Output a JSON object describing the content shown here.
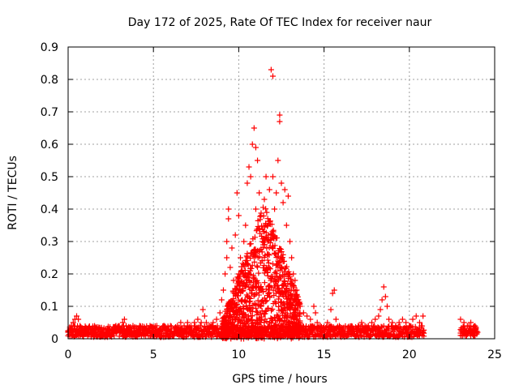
{
  "chart_data": {
    "type": "scatter",
    "title": "Day 172 of 2025, Rate Of TEC Index for receiver naur",
    "xlabel": "GPS time / hours",
    "ylabel": "ROTI / TECUs",
    "xlim": [
      0,
      25
    ],
    "ylim": [
      0,
      0.9
    ],
    "xticks": [
      "0",
      "5",
      "10",
      "15",
      "20",
      "25"
    ],
    "yticks": [
      "0",
      "0.1",
      "0.2",
      "0.3",
      "0.4",
      "0.5",
      "0.6",
      "0.7",
      "0.8",
      "0.9"
    ],
    "grid": true,
    "marker": "+",
    "series": [
      {
        "color": "#ff0000",
        "points": [
          [
            0.0,
            0.02
          ],
          [
            0.1,
            0.03
          ],
          [
            0.2,
            0.04
          ],
          [
            0.3,
            0.05
          ],
          [
            0.4,
            0.06
          ],
          [
            0.5,
            0.07
          ],
          [
            0.6,
            0.06
          ],
          [
            0.7,
            0.04
          ],
          [
            0.8,
            0.03
          ],
          [
            0.9,
            0.02
          ],
          [
            1.0,
            0.03
          ],
          [
            1.2,
            0.02
          ],
          [
            1.4,
            0.03
          ],
          [
            1.6,
            0.02
          ],
          [
            1.8,
            0.03
          ],
          [
            2.0,
            0.02
          ],
          [
            2.2,
            0.03
          ],
          [
            2.4,
            0.02
          ],
          [
            2.6,
            0.03
          ],
          [
            2.8,
            0.04
          ],
          [
            3.0,
            0.03
          ],
          [
            3.2,
            0.05
          ],
          [
            3.3,
            0.06
          ],
          [
            3.4,
            0.04
          ],
          [
            3.6,
            0.03
          ],
          [
            3.8,
            0.04
          ],
          [
            4.0,
            0.03
          ],
          [
            4.2,
            0.04
          ],
          [
            4.4,
            0.03
          ],
          [
            4.6,
            0.03
          ],
          [
            4.8,
            0.04
          ],
          [
            5.0,
            0.03
          ],
          [
            5.2,
            0.04
          ],
          [
            5.4,
            0.03
          ],
          [
            5.6,
            0.04
          ],
          [
            5.8,
            0.03
          ],
          [
            6.0,
            0.04
          ],
          [
            6.2,
            0.03
          ],
          [
            6.4,
            0.04
          ],
          [
            6.6,
            0.05
          ],
          [
            6.8,
            0.04
          ],
          [
            7.0,
            0.05
          ],
          [
            7.2,
            0.04
          ],
          [
            7.4,
            0.05
          ],
          [
            7.6,
            0.06
          ],
          [
            7.8,
            0.05
          ],
          [
            7.9,
            0.09
          ],
          [
            8.0,
            0.07
          ],
          [
            8.1,
            0.05
          ],
          [
            8.3,
            0.04
          ],
          [
            8.5,
            0.05
          ],
          [
            8.7,
            0.06
          ],
          [
            8.9,
            0.08
          ],
          [
            9.0,
            0.12
          ],
          [
            9.1,
            0.15
          ],
          [
            9.2,
            0.2
          ],
          [
            9.3,
            0.25
          ],
          [
            9.3,
            0.3
          ],
          [
            9.4,
            0.37
          ],
          [
            9.4,
            0.4
          ],
          [
            9.5,
            0.22
          ],
          [
            9.6,
            0.28
          ],
          [
            9.7,
            0.18
          ],
          [
            9.8,
            0.32
          ],
          [
            9.9,
            0.45
          ],
          [
            10.0,
            0.38
          ],
          [
            10.0,
            0.2
          ],
          [
            10.1,
            0.25
          ],
          [
            10.2,
            0.12
          ],
          [
            10.3,
            0.3
          ],
          [
            10.4,
            0.35
          ],
          [
            10.5,
            0.48
          ],
          [
            10.6,
            0.53
          ],
          [
            10.7,
            0.5
          ],
          [
            10.8,
            0.6
          ],
          [
            10.9,
            0.65
          ],
          [
            11.0,
            0.59
          ],
          [
            11.0,
            0.4
          ],
          [
            11.1,
            0.55
          ],
          [
            11.2,
            0.45
          ],
          [
            11.3,
            0.38
          ],
          [
            11.4,
            0.3
          ],
          [
            11.5,
            0.43
          ],
          [
            11.6,
            0.5
          ],
          [
            11.7,
            0.35
          ],
          [
            11.8,
            0.46
          ],
          [
            11.9,
            0.83
          ],
          [
            12.0,
            0.81
          ],
          [
            12.0,
            0.5
          ],
          [
            12.1,
            0.4
          ],
          [
            12.2,
            0.45
          ],
          [
            12.3,
            0.55
          ],
          [
            12.4,
            0.67
          ],
          [
            12.4,
            0.69
          ],
          [
            12.5,
            0.48
          ],
          [
            12.6,
            0.42
          ],
          [
            12.7,
            0.46
          ],
          [
            12.8,
            0.35
          ],
          [
            12.9,
            0.44
          ],
          [
            13.0,
            0.3
          ],
          [
            13.1,
            0.25
          ],
          [
            13.2,
            0.2
          ],
          [
            13.3,
            0.18
          ],
          [
            13.4,
            0.15
          ],
          [
            13.5,
            0.12
          ],
          [
            13.6,
            0.1
          ],
          [
            13.8,
            0.08
          ],
          [
            14.0,
            0.07
          ],
          [
            14.2,
            0.06
          ],
          [
            14.4,
            0.1
          ],
          [
            14.5,
            0.08
          ],
          [
            14.6,
            0.05
          ],
          [
            14.8,
            0.04
          ],
          [
            15.0,
            0.03
          ],
          [
            15.2,
            0.05
          ],
          [
            15.4,
            0.09
          ],
          [
            15.5,
            0.14
          ],
          [
            15.6,
            0.15
          ],
          [
            15.7,
            0.06
          ],
          [
            15.9,
            0.04
          ],
          [
            16.1,
            0.03
          ],
          [
            16.4,
            0.03
          ],
          [
            16.7,
            0.03
          ],
          [
            17.0,
            0.04
          ],
          [
            17.2,
            0.05
          ],
          [
            17.4,
            0.04
          ],
          [
            17.6,
            0.04
          ],
          [
            17.8,
            0.05
          ],
          [
            18.0,
            0.06
          ],
          [
            18.2,
            0.07
          ],
          [
            18.3,
            0.09
          ],
          [
            18.4,
            0.12
          ],
          [
            18.5,
            0.16
          ],
          [
            18.6,
            0.13
          ],
          [
            18.7,
            0.1
          ],
          [
            18.8,
            0.06
          ],
          [
            19.0,
            0.05
          ],
          [
            19.2,
            0.04
          ],
          [
            19.4,
            0.05
          ],
          [
            19.6,
            0.06
          ],
          [
            19.8,
            0.05
          ],
          [
            20.0,
            0.04
          ],
          [
            20.2,
            0.06
          ],
          [
            20.4,
            0.07
          ],
          [
            20.6,
            0.05
          ],
          [
            20.8,
            0.07
          ],
          [
            23.0,
            0.06
          ],
          [
            23.2,
            0.05
          ],
          [
            23.4,
            0.04
          ],
          [
            23.6,
            0.05
          ],
          [
            23.8,
            0.03
          ],
          [
            24.0,
            0.02
          ]
        ]
      }
    ]
  }
}
